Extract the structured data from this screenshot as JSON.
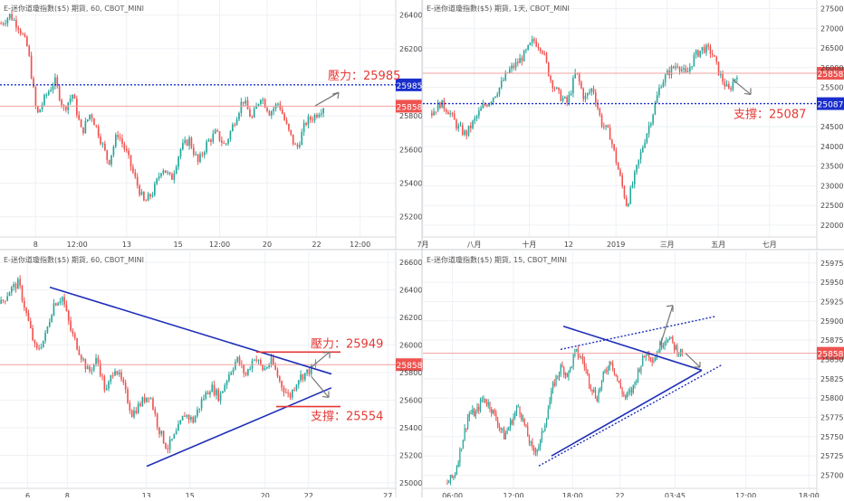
{
  "colors": {
    "up": "#26a69a",
    "down": "#ef5350",
    "trend_line": "#1f2fb8",
    "level_red": "#e53935",
    "level_blue": "#1a2ecc",
    "price_line": "#f4a0a0",
    "grid": "#eef1f5",
    "axis_text": "#444444",
    "arrow": "#777777"
  },
  "chart_data": [
    {
      "id": "top-left",
      "type": "candlestick",
      "title": "E-迷你道瓊指數($5) 期貨, 60, CBOT_MINI",
      "yticks": [
        25200,
        25400,
        25600,
        25800,
        26000,
        26200,
        26400
      ],
      "ylim": [
        25080,
        26490
      ],
      "xticks": [
        "8",
        "12:00",
        "13",
        "15",
        "12:00",
        "20",
        "22",
        "12:00"
      ],
      "price_path": [
        26350,
        26400,
        26330,
        26200,
        25800,
        25920,
        26010,
        25840,
        25930,
        25700,
        25820,
        25680,
        25520,
        25700,
        25580,
        25420,
        25280,
        25350,
        25500,
        25420,
        25600,
        25660,
        25520,
        25640,
        25700,
        25620,
        25760,
        25900,
        25780,
        25920,
        25820,
        25880,
        25720,
        25600,
        25760,
        25800,
        25858
      ],
      "current_price": "25858",
      "level": {
        "label": "壓力：25985",
        "value": 25985,
        "tag": "25985"
      },
      "arrow": "up"
    },
    {
      "id": "top-right",
      "type": "candlestick",
      "title": "E-迷你道瓊指數($5) 期貨, 1天, CBOT_MINI",
      "yticks": [
        22000,
        22500,
        23000,
        23500,
        24000,
        24500,
        25000,
        25500,
        26000,
        26500,
        27000,
        27500
      ],
      "ylim": [
        21700,
        27720
      ],
      "xticks": [
        "7月",
        "八月",
        "十月",
        "12",
        "2019",
        "三月",
        "五月",
        "七月"
      ],
      "price_path": [
        24850,
        25100,
        24900,
        24500,
        24300,
        24650,
        25000,
        25200,
        25500,
        25900,
        26100,
        26350,
        26700,
        26500,
        25700,
        25300,
        25100,
        25900,
        25200,
        25500,
        24600,
        24300,
        23400,
        22500,
        23300,
        24100,
        24800,
        25600,
        25900,
        26100,
        25800,
        26300,
        26500,
        26400,
        25800,
        25400,
        25858
      ],
      "current_price": "25858",
      "level": {
        "label": "支撐：25087",
        "value": 25087,
        "tag": "25087"
      },
      "arrow": "down"
    },
    {
      "id": "bottom-left",
      "type": "candlestick",
      "title": "E-迷你道瓊指數($5) 期貨, 60, CBOT_MINI",
      "yticks": [
        25000,
        25200,
        25400,
        25600,
        25800,
        26000,
        26200,
        26400,
        26600
      ],
      "ylim": [
        24960,
        26680
      ],
      "xticks": [
        "6",
        "8",
        "13",
        "15",
        "20",
        "22",
        "27"
      ],
      "price_path": [
        26300,
        26400,
        26450,
        26200,
        25950,
        26050,
        26300,
        26350,
        26100,
        25950,
        25800,
        25900,
        25650,
        25850,
        25700,
        25500,
        25580,
        25650,
        25400,
        25250,
        25350,
        25500,
        25450,
        25600,
        25700,
        25620,
        25780,
        25900,
        25780,
        25920,
        25820,
        25880,
        25720,
        25620,
        25760,
        25800,
        25858
      ],
      "current_price": "25858",
      "levels": [
        {
          "label": "壓力：25949",
          "value": 25949
        },
        {
          "label": "支撐：25554",
          "value": 25554
        }
      ],
      "arrows": [
        "up",
        "down"
      ]
    },
    {
      "id": "bottom-right",
      "type": "candlestick",
      "title": "E-迷你道瓊指數($5) 期貨, 15, CBOT_MINI",
      "yticks": [
        25700,
        25725,
        25750,
        25775,
        25800,
        25825,
        25850,
        25875,
        25900,
        25925,
        25950,
        25975
      ],
      "ylim": [
        25683,
        25990
      ],
      "xticks": [
        "06:00",
        "12:00",
        "18:00",
        "22",
        "03:45",
        "12:00",
        "18:00"
      ],
      "price_path": [
        25690,
        25700,
        25740,
        25780,
        25780,
        25800,
        25790,
        25770,
        25750,
        25770,
        25790,
        25760,
        25730,
        25740,
        25780,
        25820,
        25840,
        25830,
        25860,
        25850,
        25820,
        25800,
        25830,
        25850,
        25820,
        25800,
        25810,
        25840,
        25860,
        25850,
        25870,
        25880,
        25865,
        25858
      ],
      "current_price": "25858",
      "arrows": [
        "up",
        "down"
      ]
    }
  ]
}
